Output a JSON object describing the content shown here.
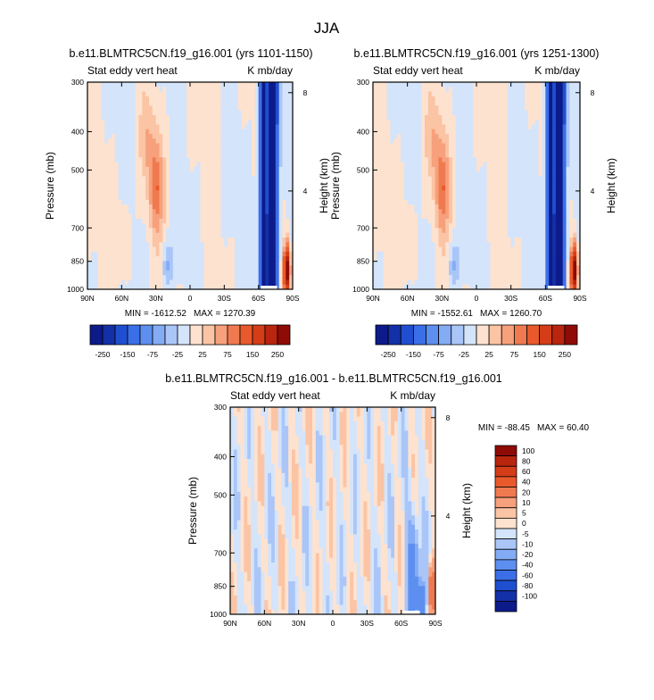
{
  "figure": {
    "season": "JJA",
    "colors": {
      "blues": [
        "#0c1a8a",
        "#1430a8",
        "#1f4fd0",
        "#3b6fe8",
        "#5d8ff0",
        "#84acf5",
        "#aac6f8",
        "#d4e4fb"
      ],
      "reds": [
        "#fde2cf",
        "#fbc4a4",
        "#f7a07c",
        "#f07a50",
        "#e85a2c",
        "#d43d17",
        "#b9250d",
        "#8e0b06"
      ],
      "mark": "#ffffff"
    }
  },
  "chart_data": [
    {
      "type": "heatmap",
      "id": "panel_a",
      "title": "b.e11.BLMTRC5CN.f19_g16.001 (yrs 1101-1150)",
      "left_string": "Stat eddy vert heat",
      "right_string": "K mb/day",
      "ylabel": "Pressure (mb)",
      "y2label": "Height (km)",
      "x_tick_labels": [
        "90N",
        "60N",
        "30N",
        "0",
        "30S",
        "60S",
        "90S"
      ],
      "x_tick_values": [
        90,
        60,
        30,
        0,
        -30,
        -60,
        -90
      ],
      "y_tick_labels": [
        "300",
        "400",
        "500",
        "700",
        "850",
        "1000"
      ],
      "y_tick_values": [
        300,
        400,
        500,
        700,
        850,
        1000
      ],
      "y2_tick_labels": [
        "8",
        "4"
      ],
      "y2_tick_values": [
        8,
        4
      ],
      "ylim": [
        1000,
        300
      ],
      "xlim": [
        90,
        -90
      ],
      "min_label": "MIN = -1612.52",
      "max_label": "MAX = 1270.39",
      "min": -1612.52,
      "max": 1270.39,
      "colorbar": {
        "orientation": "horizontal",
        "levels": [
          -250,
          -200,
          -150,
          -100,
          -75,
          -50,
          -25,
          0,
          25,
          50,
          75,
          100,
          150,
          200,
          250
        ],
        "labels": [
          "-250",
          "-150",
          "-75",
          "-25",
          "25",
          "75",
          "150",
          "250"
        ]
      }
    },
    {
      "type": "heatmap",
      "id": "panel_b",
      "title": "b.e11.BLMTRC5CN.f19_g16.001 (yrs 1251-1300)",
      "left_string": "Stat eddy vert heat",
      "right_string": "K mb/day",
      "ylabel": "Pressure (mb)",
      "y2label": "Height (km)",
      "x_tick_labels": [
        "90N",
        "60N",
        "30N",
        "0",
        "30S",
        "60S",
        "90S"
      ],
      "x_tick_values": [
        90,
        60,
        30,
        0,
        -30,
        -60,
        -90
      ],
      "y_tick_labels": [
        "300",
        "400",
        "500",
        "700",
        "850",
        "1000"
      ],
      "y_tick_values": [
        300,
        400,
        500,
        700,
        850,
        1000
      ],
      "y2_tick_labels": [
        "8",
        "4"
      ],
      "y2_tick_values": [
        8,
        4
      ],
      "ylim": [
        1000,
        300
      ],
      "xlim": [
        90,
        -90
      ],
      "min_label": "MIN = -1552.61",
      "max_label": "MAX = 1260.70",
      "min": -1552.61,
      "max": 1260.7,
      "colorbar": {
        "orientation": "horizontal",
        "levels": [
          -250,
          -200,
          -150,
          -100,
          -75,
          -50,
          -25,
          0,
          25,
          50,
          75,
          100,
          150,
          200,
          250
        ],
        "labels": [
          "-250",
          "-150",
          "-75",
          "-25",
          "25",
          "75",
          "150",
          "250"
        ]
      }
    },
    {
      "type": "heatmap",
      "id": "panel_diff",
      "title": "b.e11.BLMTRC5CN.f19_g16.001 - b.e11.BLMTRC5CN.f19_g16.001",
      "left_string": "Stat eddy vert heat",
      "right_string": "K mb/day",
      "ylabel": "Pressure (mb)",
      "y2label": "Height (km)",
      "x_tick_labels": [
        "90N",
        "60N",
        "30N",
        "0",
        "30S",
        "60S",
        "90S"
      ],
      "x_tick_values": [
        90,
        60,
        30,
        0,
        -30,
        -60,
        -90
      ],
      "y_tick_labels": [
        "300",
        "400",
        "500",
        "700",
        "850",
        "1000"
      ],
      "y_tick_values": [
        300,
        400,
        500,
        700,
        850,
        1000
      ],
      "y2_tick_labels": [
        "8",
        "4"
      ],
      "y2_tick_values": [
        8,
        4
      ],
      "ylim": [
        1000,
        300
      ],
      "xlim": [
        90,
        -90
      ],
      "min_label": "MIN = -88.45",
      "max_label": "MAX =  60.40",
      "min": -88.45,
      "max": 60.4,
      "colorbar": {
        "orientation": "vertical",
        "levels": [
          -100,
          -80,
          -60,
          -40,
          -20,
          -10,
          -5,
          0,
          5,
          10,
          20,
          40,
          60,
          80,
          100
        ],
        "labels": [
          "100",
          "80",
          "60",
          "40",
          "20",
          "10",
          "5",
          "0",
          "-5",
          "-10",
          "-20",
          "-40",
          "-60",
          "-80",
          "-100"
        ]
      }
    }
  ]
}
